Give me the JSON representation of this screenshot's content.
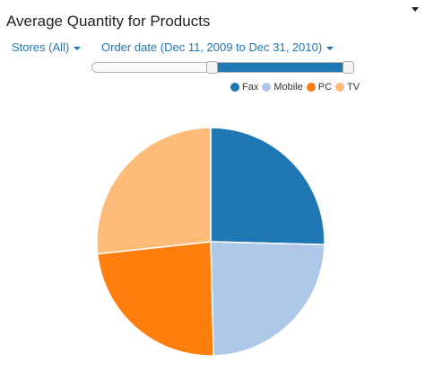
{
  "title": "Average Quantity for Products",
  "filters": {
    "stores_label": "Stores (All)",
    "date_label": "Order date (Dec 11, 2009 to Dec 31, 2010)"
  },
  "date_range_slider": {
    "low": 0.46,
    "high": 0.98
  },
  "colors": {
    "accent": "#1f77b4"
  },
  "chart_data": {
    "type": "pie",
    "title": "Average Quantity for Products",
    "legend_position": "top-right",
    "slices": [
      {
        "label": "Fax",
        "value": 25.4,
        "color": "#1f77b4"
      },
      {
        "label": "Mobile",
        "value": 24.2,
        "color": "#aec7e8"
      },
      {
        "label": "PC",
        "value": 23.7,
        "color": "#ff7f0e"
      },
      {
        "label": "TV",
        "value": 26.7,
        "color": "#ffbb78"
      }
    ]
  }
}
